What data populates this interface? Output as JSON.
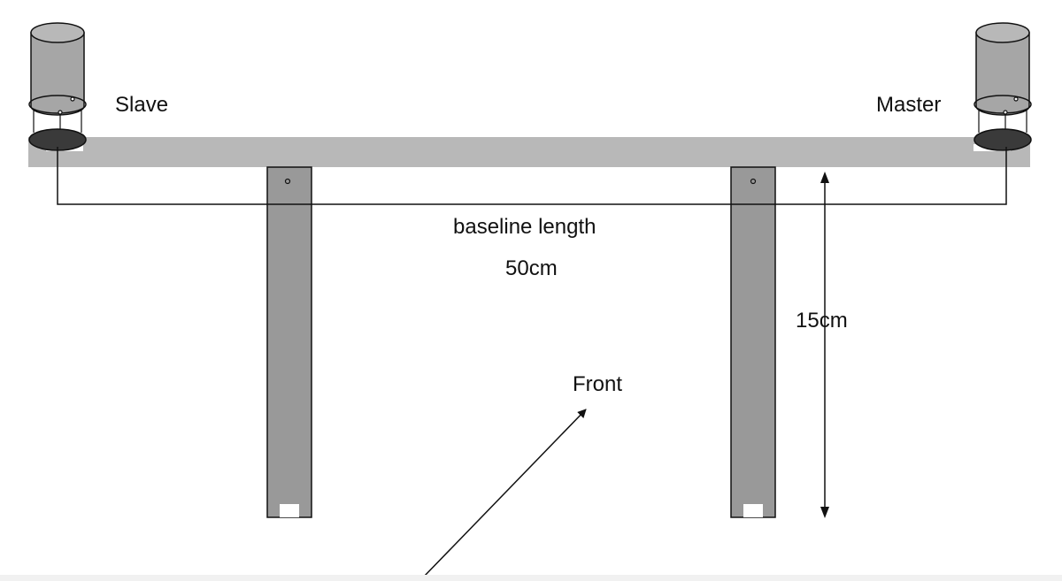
{
  "labels": {
    "slave": "Slave",
    "master": "Master",
    "baseline_text": "baseline length",
    "baseline_value": "50cm",
    "height_value": "15cm",
    "front": "Front"
  },
  "colors": {
    "bar": "#b8b8b8",
    "leg": "#999999",
    "cylinder_top": "#a6a6a6",
    "cylinder_base": "#3a3a3a",
    "line": "#111111"
  }
}
